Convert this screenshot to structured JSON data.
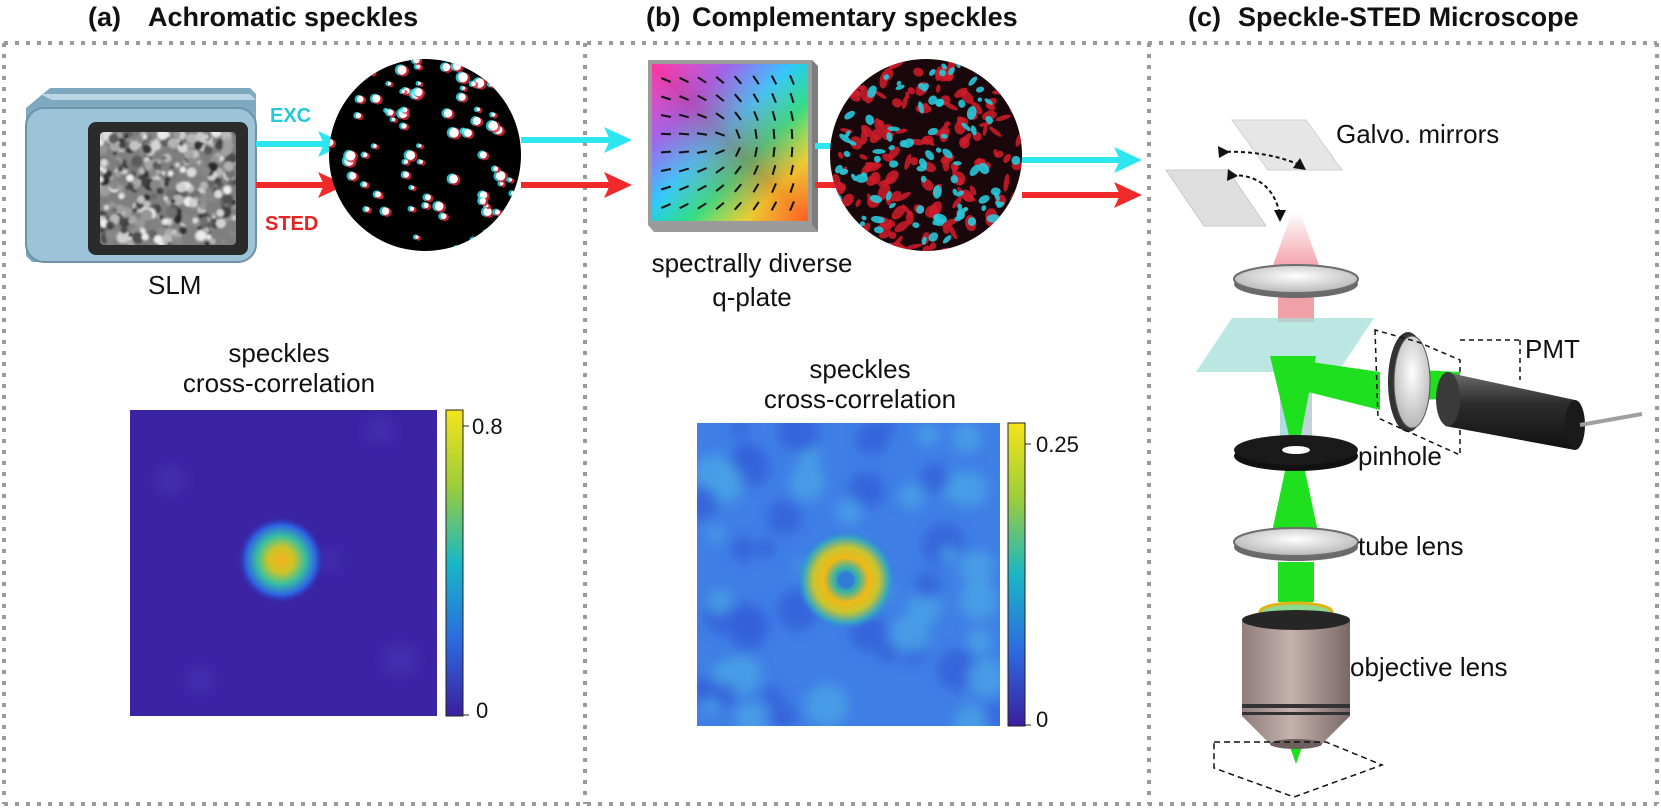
{
  "panels": {
    "a": {
      "tag": "(a)",
      "title": "Achromatic speckles",
      "slm_label": "SLM",
      "exc_label": "EXC",
      "sted_label": "STED",
      "corr_title_1": "speckles",
      "corr_title_2": "cross-correlation",
      "colorbar_max": "0.8",
      "colorbar_min": "0"
    },
    "b": {
      "tag": "(b)",
      "title": "Complementary speckles",
      "qplate_label_1": "spectrally diverse",
      "qplate_label_2": "q-plate",
      "corr_title_1": "speckles",
      "corr_title_2": "cross-correlation",
      "colorbar_max": "0.25",
      "colorbar_min": "0"
    },
    "c": {
      "tag": "(c)",
      "title": "Speckle-STED Microscope",
      "galvo_label": "Galvo. mirrors",
      "pmt_label": "PMT",
      "pinhole_label": "pinhole",
      "tube_lens_label": "tube lens",
      "objective_label": "objective lens"
    }
  },
  "colors": {
    "exc_beam": "#2ee6f0",
    "sted_beam": "#f02a2a",
    "fluorescence": "#1fe01f",
    "slm_body": "#9cc3d8",
    "separator": "#9a9a9a"
  }
}
